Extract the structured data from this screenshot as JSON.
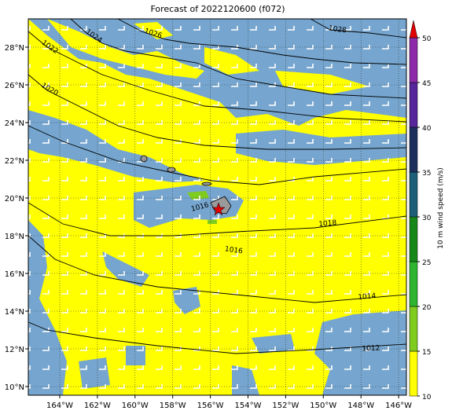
{
  "title": "Forecast of 2022120600 (f072)",
  "lon_ticks": [
    "164°W",
    "162°W",
    "160°W",
    "158°W",
    "156°W",
    "154°W",
    "152°W",
    "150°W",
    "148°W",
    "146°W"
  ],
  "lat_ticks": [
    "28°N",
    "26°N",
    "24°N",
    "22°N",
    "20°N",
    "18°N",
    "16°N",
    "14°N",
    "12°N",
    "10°N"
  ],
  "colorbar": {
    "label": "10 m wind speed (m/s)",
    "ticks": [
      10,
      15,
      20,
      25,
      30,
      35,
      40,
      45,
      50
    ],
    "lim": [
      10,
      50
    ],
    "colors": [
      "#ffff00",
      "#7fcc1f",
      "#2fb42f",
      "#16881a",
      "#1d5f78",
      "#1e2f5e",
      "#56269a",
      "#8c2aaa"
    ],
    "extend_color": "#e00000"
  },
  "isobar_labels": [
    "1028",
    "1026",
    "1024",
    "1022",
    "1020",
    "1016",
    "1018",
    "1016",
    "1014",
    "1012"
  ]
}
